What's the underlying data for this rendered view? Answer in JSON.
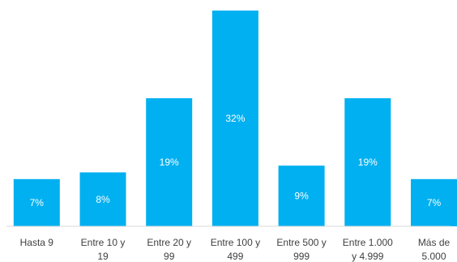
{
  "chart_data": {
    "type": "bar",
    "title": "",
    "xlabel": "",
    "ylabel": "",
    "ylim": [
      0,
      32
    ],
    "grid": false,
    "legend": "none",
    "bar_color": "#00b0f0",
    "categories": [
      [
        "Hasta 9"
      ],
      [
        "Entre 10 y",
        "19"
      ],
      [
        "Entre 20 y",
        "99"
      ],
      [
        "Entre 100 y",
        "499"
      ],
      [
        "Entre 500 y",
        "999"
      ],
      [
        "Entre 1.000",
        "y 4.999"
      ],
      [
        "Más de",
        "5.000"
      ]
    ],
    "values": [
      7,
      8,
      19,
      32,
      9,
      19,
      7
    ],
    "value_labels": [
      "7%",
      "8%",
      "19%",
      "32%",
      "9%",
      "19%",
      "7%"
    ]
  }
}
